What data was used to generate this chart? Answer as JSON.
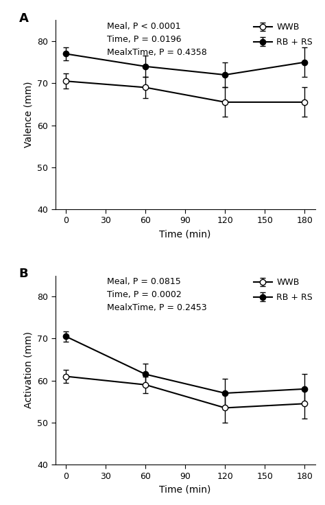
{
  "panel_A": {
    "label": "A",
    "ylabel": "Valence (mm)",
    "xlabel": "Time (min)",
    "ylim": [
      40,
      85
    ],
    "yticks": [
      40,
      50,
      60,
      70,
      80
    ],
    "xticks": [
      0,
      30,
      60,
      90,
      120,
      150,
      180
    ],
    "time": [
      0,
      60,
      120,
      180
    ],
    "wwb_mean": [
      70.5,
      69.0,
      65.5,
      65.5
    ],
    "wwb_err": [
      1.8,
      2.5,
      3.5,
      3.5
    ],
    "rb_mean": [
      77.0,
      74.0,
      72.0,
      75.0
    ],
    "rb_err": [
      1.5,
      2.5,
      3.0,
      3.5
    ],
    "annotation": "Meal, P < 0.0001\nTime, P = 0.0196\nMealxTime, P = 0.4358",
    "legend_wwb": "WWB",
    "legend_rb": "RB + RS"
  },
  "panel_B": {
    "label": "B",
    "ylabel": "Activation (mm)",
    "xlabel": "Time (min)",
    "ylim": [
      40,
      85
    ],
    "yticks": [
      40,
      50,
      60,
      70,
      80
    ],
    "xticks": [
      0,
      30,
      60,
      90,
      120,
      150,
      180
    ],
    "time": [
      0,
      60,
      120,
      180
    ],
    "wwb_mean": [
      61.0,
      59.0,
      53.5,
      54.5
    ],
    "wwb_err": [
      1.5,
      2.0,
      3.5,
      3.5
    ],
    "rb_mean": [
      70.5,
      61.5,
      57.0,
      58.0
    ],
    "rb_err": [
      1.2,
      2.5,
      3.5,
      3.5
    ],
    "annotation": "Meal, P = 0.0815\nTime, P = 0.0002\nMealxTime, P = 0.2453",
    "legend_wwb": "WWB",
    "legend_rb": "RB + RS"
  },
  "wwb_color": "#000000",
  "rb_color": "#000000",
  "wwb_marker": "o",
  "rb_marker": "o",
  "wwb_markerfacecolor": "white",
  "rb_markerfacecolor": "black",
  "linewidth": 1.5,
  "markersize": 6,
  "capsize": 3,
  "elinewidth": 1.0,
  "font_size_label": 10,
  "font_size_tick": 9,
  "font_size_annot": 9,
  "font_size_legend": 9,
  "font_size_panel_label": 13
}
